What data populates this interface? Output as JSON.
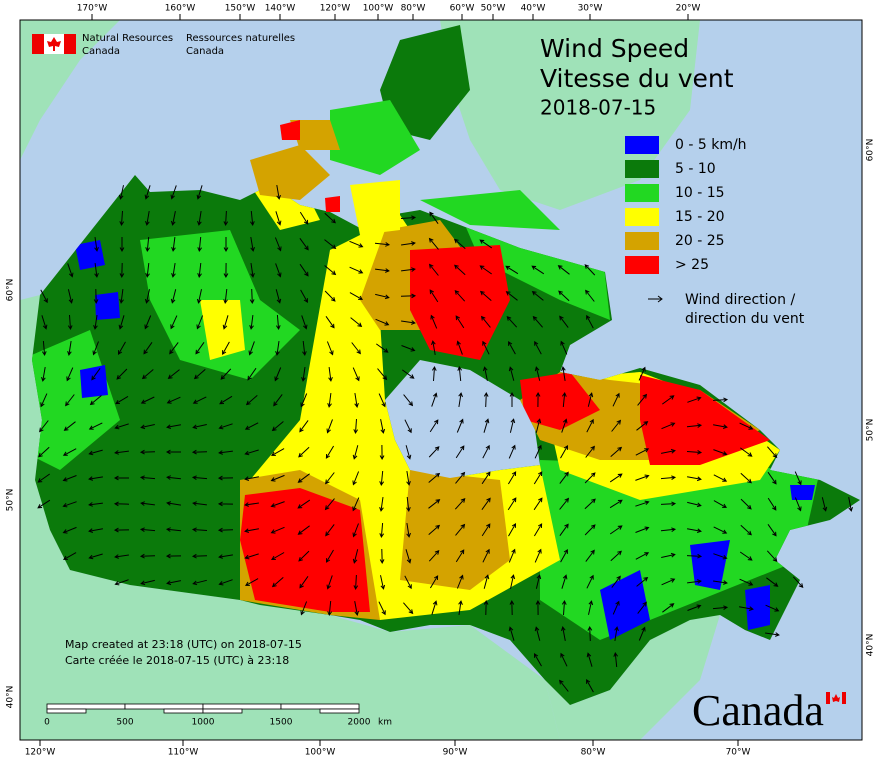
{
  "header": {
    "agency_en": [
      "Natural Resources",
      "Canada"
    ],
    "agency_fr": [
      "Ressources naturelles",
      "Canada"
    ]
  },
  "title": {
    "en": "Wind Speed",
    "fr": "Vitesse du vent",
    "date": "2018-07-15"
  },
  "legend": {
    "items": [
      {
        "label": "0 - 5 km/h",
        "color": "#0000ff"
      },
      {
        "label": "5 - 10",
        "color": "#0b7a0b"
      },
      {
        "label": "10 - 15",
        "color": "#22d822"
      },
      {
        "label": "15 - 20",
        "color": "#ffff00"
      },
      {
        "label": "20 - 25",
        "color": "#d4a300"
      },
      {
        "label": "> 25",
        "color": "#ff0000"
      }
    ],
    "direction": [
      "Wind direction /",
      "direction du vent"
    ]
  },
  "graticule": {
    "top": [
      "170°W",
      "160°W",
      "150°W",
      "140°W",
      "120°W",
      "100°W",
      "80°W",
      "60°W",
      "50°W",
      "40°W",
      "30°W",
      "20°W"
    ],
    "bottom": [
      "120°W",
      "110°W",
      "100°W",
      "90°W",
      "80°W",
      "70°W"
    ],
    "left": [
      "60°N",
      "50°N",
      "40°N"
    ],
    "right": [
      "60°N",
      "50°N",
      "40°N"
    ]
  },
  "footer": {
    "notes": [
      "Map created at 23:18 (UTC) on 2018-07-15",
      "Carte créée le 2018-07-15 (UTC) à 23:18"
    ]
  },
  "scale_bar": {
    "labels": [
      "0",
      "500",
      "1000",
      "1500",
      "2000"
    ],
    "unit": "km"
  },
  "wordmark": "Canada"
}
